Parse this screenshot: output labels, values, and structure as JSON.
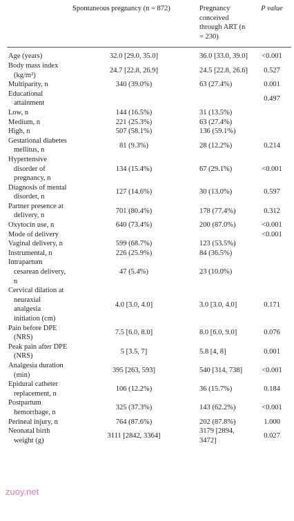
{
  "header": [
    "Spontaneous pregnancy (n = 872)",
    "Pregnancy conceived through ART (n = 230)",
    "P value"
  ],
  "rows": [
    [
      "Age (years)",
      "32.0 [29.0, 35.0]",
      "36.0 [33.0, 39.0]",
      "<0.001"
    ],
    [
      "Body mass index (kg/m²)",
      "24.7 [22.8, 26.9]",
      "24.5 [22.8, 26.6]",
      "0.527"
    ],
    [
      "Multiparity, n",
      "340 (39.0%)",
      "63 (27.4%)",
      "0.001"
    ],
    [
      "Educational attainment",
      null,
      null,
      "0.497"
    ],
    [
      "Low, n",
      "144 (16.5%)",
      "31 (13.5%)",
      null
    ],
    [
      "Medium, n",
      "221 (25.3%)",
      "63 (27.4%)",
      null
    ],
    [
      "High, n",
      "507 (58.1%)",
      "136 (59.1%)",
      null
    ],
    [
      "Gestational diabetes mellitus, n",
      "81 (9.3%)",
      "28 (12.2%)",
      "0.214"
    ],
    [
      "Hypertensive disorder of pregnancy, n",
      "134 (15.4%)",
      "67 (29.1%)",
      "<0.001"
    ],
    [
      "Diagnosis of mental disorder, n",
      "127 (14.6%)",
      "30 (13.0%)",
      "0.597"
    ],
    [
      "Partner presence at delivery, n",
      "701 (80.4%)",
      "178 (77.4%)",
      "0.312"
    ],
    [
      "Oxytocin use, n",
      "640 (73.4%)",
      "200 (87.0%)",
      "<0.001"
    ],
    [
      "Mode of delivery",
      null,
      null,
      "<0.001"
    ],
    [
      "Vaginal delivery, n",
      "599 (68.7%)",
      "123 (53.5%)",
      null
    ],
    [
      "Instrumental, n",
      "226 (25.9%)",
      "84 (36.5%)",
      null
    ],
    [
      "Intrapartum cesarean delivery, n",
      "47 (5.4%)",
      "23 (10.0%)",
      null
    ],
    [
      "Cervical dilation at neuraxial analgesia initiation (cm)",
      "4.0 [3.0, 4.0]",
      "3.0 [3.0, 4.0]",
      "0.171"
    ],
    [
      "Pain before DPE (NRS)",
      "7.5 [6.0, 8.0]",
      "8.0 [6.0, 9.0]",
      "0.076"
    ],
    [
      "Peak pain after DPE (NRS)",
      "5 [3.5, 7]",
      "5.8 [4, 8]",
      "0.001"
    ],
    [
      "Analgesia duration (min)",
      "395 [263, 593]",
      "540 [314, 738]",
      "<0.001"
    ],
    [
      "Epidural catheter replacement, n",
      "106 (12.2%)",
      "36 (15.7%)",
      "0.184"
    ],
    [
      "Postpartum hemorrhage, n",
      "325 (37.3%)",
      "143 (62.2%)",
      "<0.001"
    ],
    [
      "Perineal injury, n",
      "764 (87.6%)",
      "202 (87.8%)",
      "1.000"
    ],
    [
      "Neonatal birth weight (g)",
      "3111 [2842, 3364]",
      "3179 [2894, 3472]",
      "0.027"
    ]
  ],
  "watermark": "zuoy.net"
}
